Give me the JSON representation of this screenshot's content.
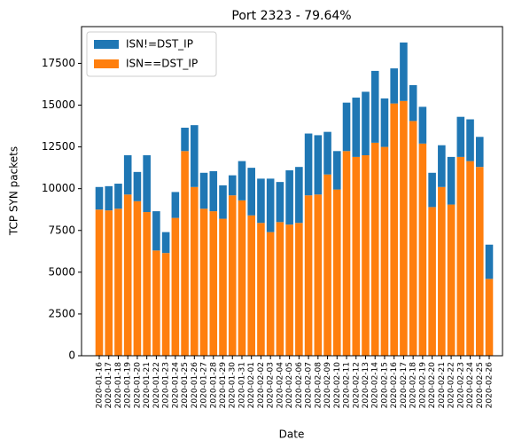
{
  "chart_data": {
    "type": "stacked_bar",
    "title": "Port 2323 - 79.64%",
    "x_label": "Date",
    "y_label": "TCP SYN packets",
    "categories": [
      "2020-01-16",
      "2020-01-17",
      "2020-01-18",
      "2020-01-19",
      "2020-01-20",
      "2020-01-21",
      "2020-01-22",
      "2020-01-23",
      "2020-01-24",
      "2020-01-25",
      "2020-01-26",
      "2020-01-27",
      "2020-01-28",
      "2020-01-29",
      "2020-01-30",
      "2020-01-31",
      "2020-02-01",
      "2020-02-02",
      "2020-02-03",
      "2020-02-04",
      "2020-02-05",
      "2020-02-06",
      "2020-02-07",
      "2020-02-08",
      "2020-02-09",
      "2020-02-10",
      "2020-02-11",
      "2020-02-12",
      "2020-02-13",
      "2020-02-14",
      "2020-02-15",
      "2020-02-16",
      "2020-02-17",
      "2020-02-18",
      "2020-02-19",
      "2020-02-20",
      "2020-02-21",
      "2020-02-22",
      "2020-02-23",
      "2020-02-24",
      "2020-02-25",
      "2020-02-26"
    ],
    "series": [
      {
        "name": "ISN!=DST_IP",
        "color": "#1f77b4",
        "values": [
          1350,
          1450,
          1500,
          2350,
          1750,
          3400,
          2350,
          1250,
          1550,
          1400,
          3700,
          2150,
          2400,
          2000,
          1200,
          2350,
          2850,
          2650,
          3200,
          2400,
          3250,
          3350,
          3700,
          3550,
          2550,
          2300,
          2900,
          3550,
          3800,
          4300,
          2900,
          2100,
          3500,
          2150,
          2200,
          2050,
          2500,
          2850,
          2400,
          2500,
          1800,
          2050
        ]
      },
      {
        "name": "ISN==DST_IP",
        "color": "#ff7f0e",
        "values": [
          8750,
          8700,
          8800,
          9650,
          9250,
          8600,
          6300,
          6150,
          8250,
          12250,
          10100,
          8800,
          8650,
          8200,
          9600,
          9300,
          8400,
          7950,
          7400,
          8000,
          7850,
          7950,
          9600,
          9650,
          10850,
          9950,
          12250,
          11900,
          12000,
          12750,
          12500,
          15100,
          15250,
          14050,
          12700,
          8900,
          10100,
          9050,
          11900,
          11650,
          11300,
          4600
        ]
      }
    ],
    "ylim": [
      0,
      19700
    ],
    "yticks": [
      0,
      2500,
      5000,
      7500,
      10000,
      12500,
      15000,
      17500
    ],
    "legend": "upper left"
  }
}
